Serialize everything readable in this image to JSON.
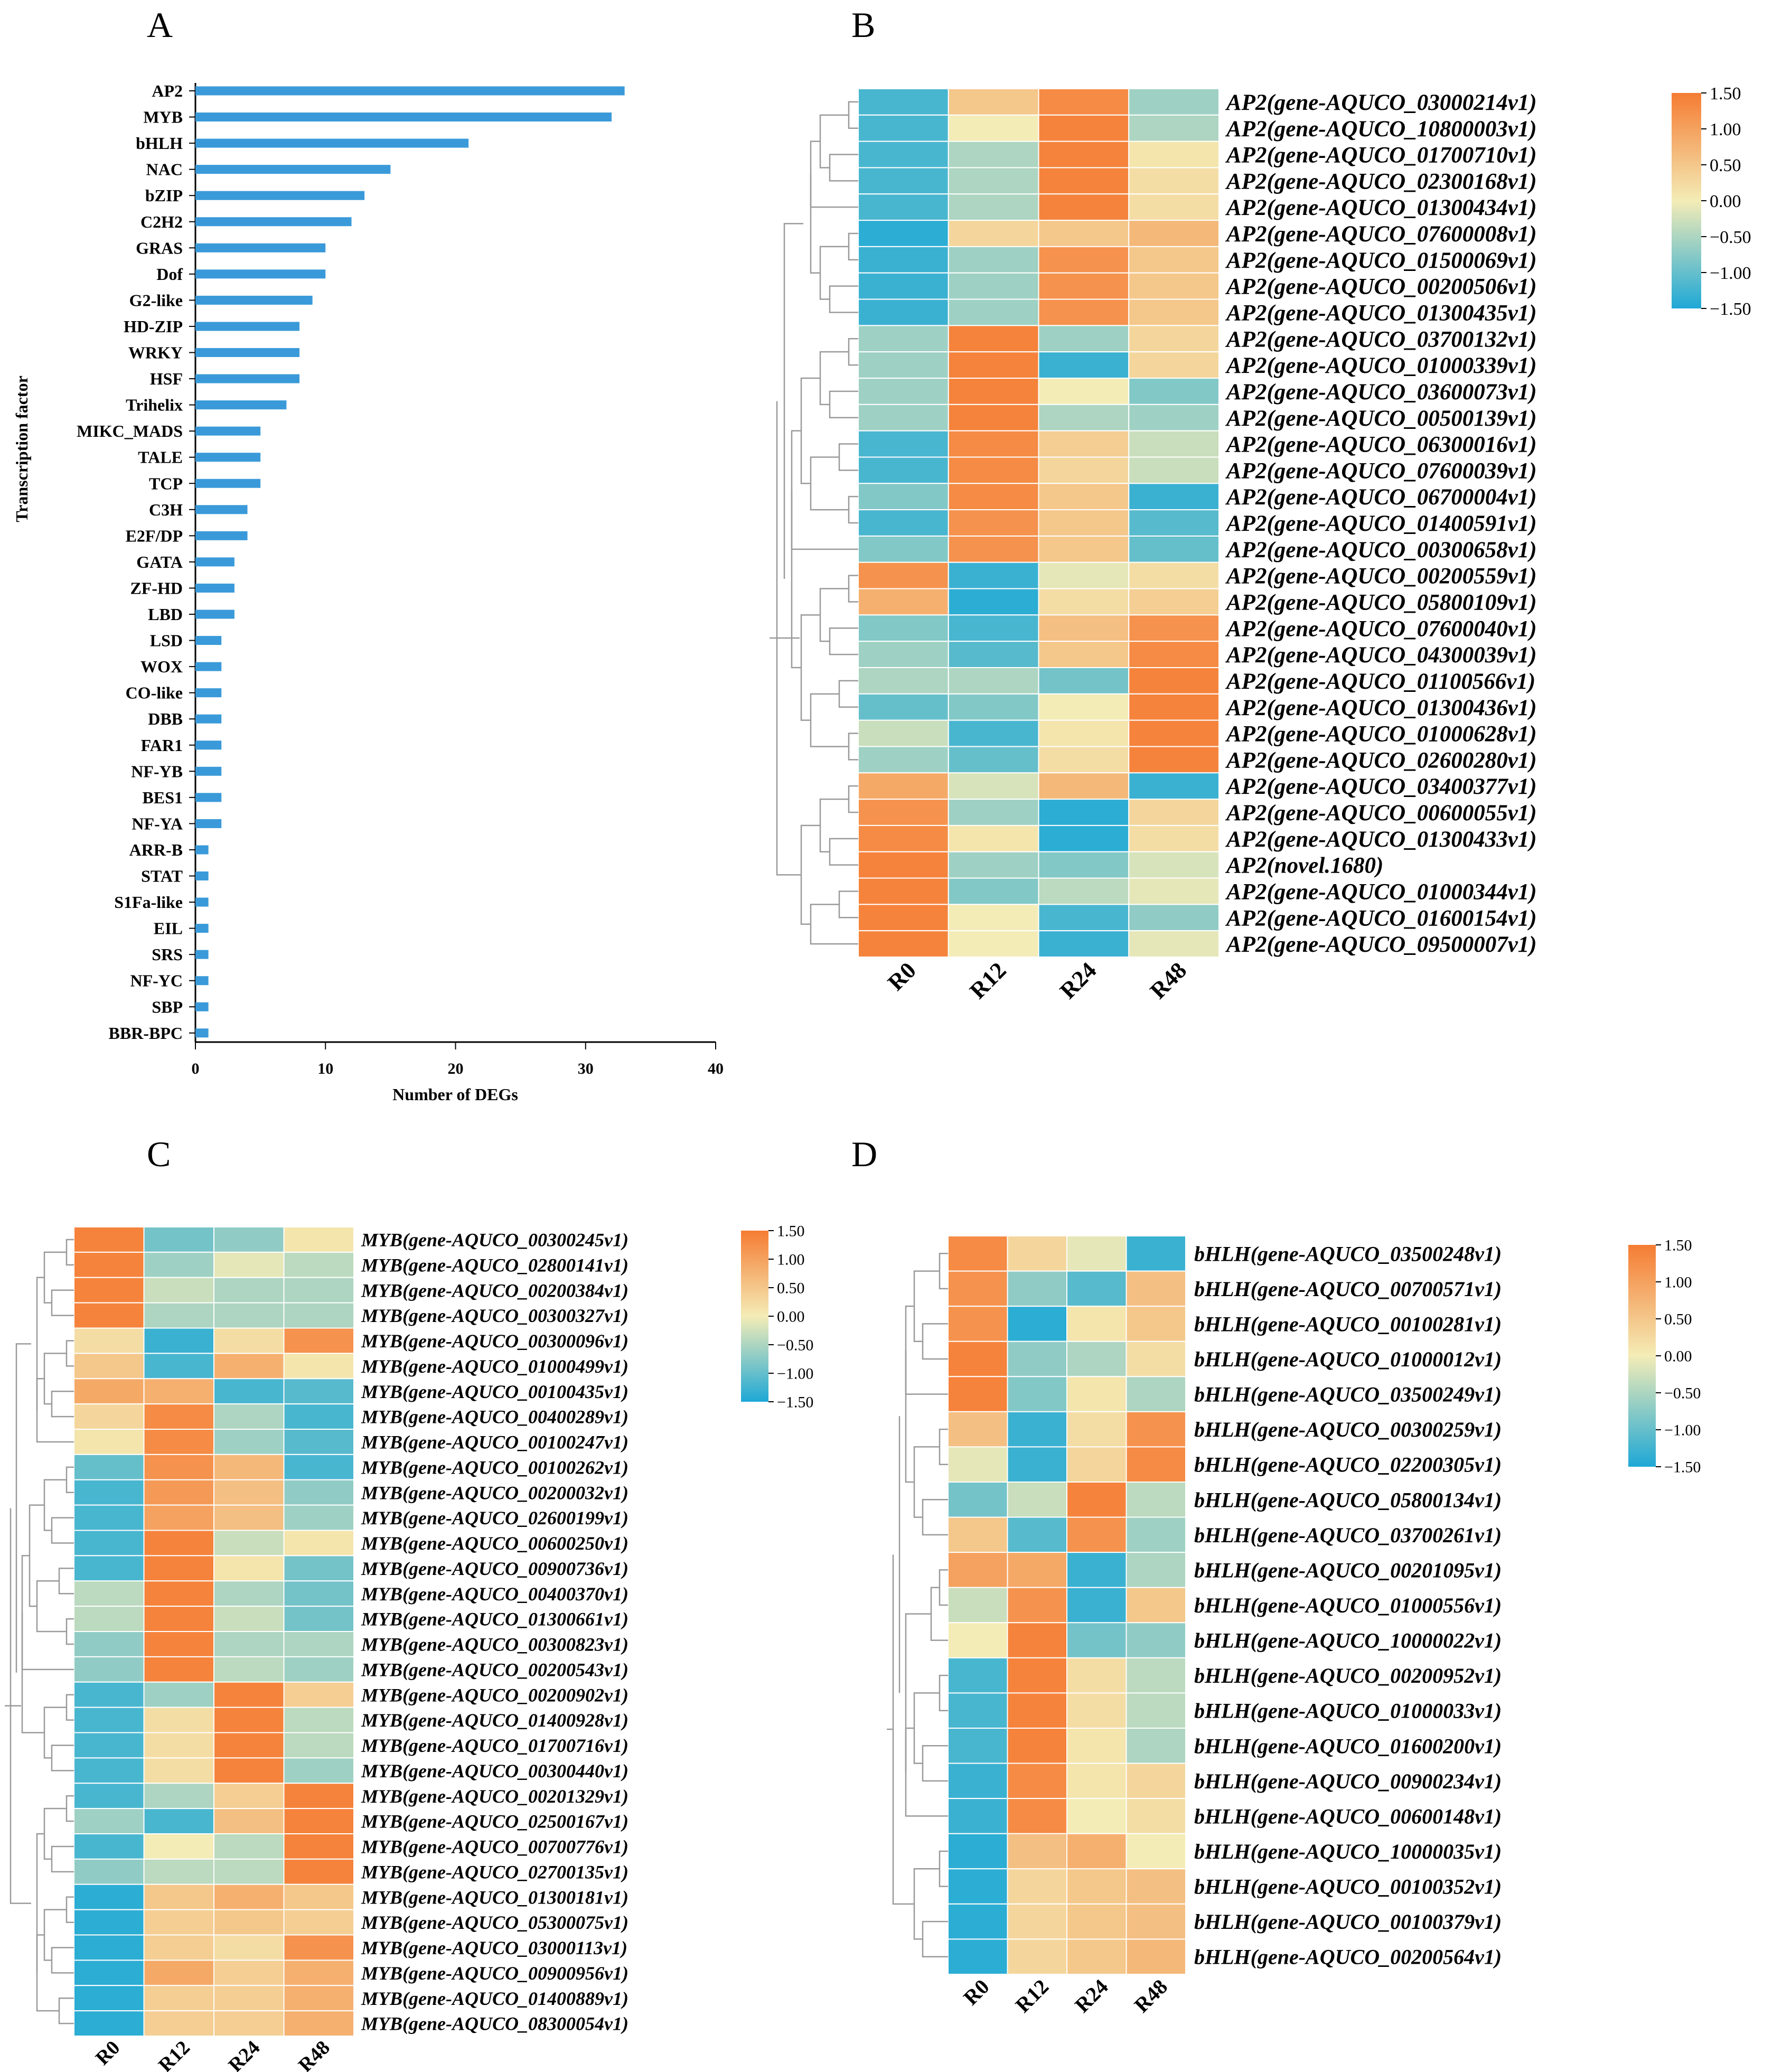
{
  "panels": {
    "a": "A",
    "b": "B",
    "c": "C",
    "d": "D"
  },
  "colorbar_ticks": [
    "1.50",
    "1.00",
    "0.50",
    "0.00",
    "−0.50",
    "−1.00",
    "−1.50"
  ],
  "colorscale": {
    "low": "#1ea8d6",
    "mid": "#f4ecb6",
    "high": "#f57c33"
  },
  "chart_data": [
    {
      "id": "A",
      "type": "bar",
      "orientation": "horizontal",
      "xlabel": "Number of DEGs",
      "ylabel": "Transcription factor",
      "xlim": [
        0,
        40
      ],
      "xticks": [
        0,
        10,
        20,
        30,
        40
      ],
      "bar_color": "#3a9ad9",
      "categories": [
        "AP2",
        "MYB",
        "bHLH",
        "NAC",
        "bZIP",
        "C2H2",
        "GRAS",
        "Dof",
        "G2-like",
        "HD-ZIP",
        "WRKY",
        "HSF",
        "Trihelix",
        "MIKC_MADS",
        "TALE",
        "TCP",
        "C3H",
        "E2F/DP",
        "GATA",
        "ZF-HD",
        "LBD",
        "LSD",
        "WOX",
        "CO-like",
        "DBB",
        "FAR1",
        "NF-YB",
        "BES1",
        "NF-YA",
        "ARR-B",
        "STAT",
        "S1Fa-like",
        "EIL",
        "SRS",
        "NF-YC",
        "SBP",
        "BBR-BPC"
      ],
      "values": [
        33,
        32,
        21,
        15,
        13,
        12,
        10,
        10,
        9,
        8,
        8,
        8,
        7,
        5,
        5,
        5,
        4,
        4,
        3,
        3,
        3,
        2,
        2,
        2,
        2,
        2,
        2,
        2,
        2,
        1,
        1,
        1,
        1,
        1,
        1,
        1,
        1
      ]
    },
    {
      "id": "B",
      "type": "heatmap",
      "columns": [
        "R0",
        "R12",
        "R24",
        "R48"
      ],
      "vmin": -1.5,
      "vmax": 1.5,
      "rows": [
        "AP2(gene-AQUCO_03000214v1)",
        "AP2(gene-AQUCO_10800003v1)",
        "AP2(gene-AQUCO_01700710v1)",
        "AP2(gene-AQUCO_02300168v1)",
        "AP2(gene-AQUCO_01300434v1)",
        "AP2(gene-AQUCO_07600008v1)",
        "AP2(gene-AQUCO_01500069v1)",
        "AP2(gene-AQUCO_00200506v1)",
        "AP2(gene-AQUCO_01300435v1)",
        "AP2(gene-AQUCO_03700132v1)",
        "AP2(gene-AQUCO_01000339v1)",
        "AP2(gene-AQUCO_03600073v1)",
        "AP2(gene-AQUCO_00500139v1)",
        "AP2(gene-AQUCO_06300016v1)",
        "AP2(gene-AQUCO_07600039v1)",
        "AP2(gene-AQUCO_06700004v1)",
        "AP2(gene-AQUCO_01400591v1)",
        "AP2(gene-AQUCO_00300658v1)",
        "AP2(gene-AQUCO_00200559v1)",
        "AP2(gene-AQUCO_05800109v1)",
        "AP2(gene-AQUCO_07600040v1)",
        "AP2(gene-AQUCO_04300039v1)",
        "AP2(gene-AQUCO_01100566v1)",
        "AP2(gene-AQUCO_01300436v1)",
        "AP2(gene-AQUCO_01000628v1)",
        "AP2(gene-AQUCO_02600280v1)",
        "AP2(gene-AQUCO_03400377v1)",
        "AP2(gene-AQUCO_00600055v1)",
        "AP2(gene-AQUCO_01300433v1)",
        "AP2(novel.1680)",
        "AP2(gene-AQUCO_01000344v1)",
        "AP2(gene-AQUCO_01600154v1)",
        "AP2(gene-AQUCO_09500007v1)"
      ],
      "values": [
        [
          -1.2,
          0.5,
          1.3,
          -0.6
        ],
        [
          -1.2,
          0.0,
          1.4,
          -0.5
        ],
        [
          -1.2,
          -0.5,
          1.4,
          0.1
        ],
        [
          -1.2,
          -0.5,
          1.4,
          0.2
        ],
        [
          -1.2,
          -0.5,
          1.4,
          0.2
        ],
        [
          -1.4,
          0.3,
          0.5,
          0.7
        ],
        [
          -1.3,
          -0.6,
          1.2,
          0.5
        ],
        [
          -1.3,
          -0.6,
          1.2,
          0.5
        ],
        [
          -1.3,
          -0.6,
          1.2,
          0.5
        ],
        [
          -0.6,
          1.4,
          -0.6,
          0.3
        ],
        [
          -0.6,
          1.4,
          -1.3,
          0.3
        ],
        [
          -0.6,
          1.4,
          0.0,
          -0.8
        ],
        [
          -0.6,
          1.4,
          -0.5,
          -0.6
        ],
        [
          -1.2,
          1.3,
          0.4,
          -0.3
        ],
        [
          -1.2,
          1.3,
          0.3,
          -0.3
        ],
        [
          -0.8,
          1.3,
          0.5,
          -1.3
        ],
        [
          -1.2,
          1.2,
          0.5,
          -1.1
        ],
        [
          -0.8,
          1.2,
          0.5,
          -1.0
        ],
        [
          1.2,
          -1.3,
          -0.1,
          0.2
        ],
        [
          0.8,
          -1.4,
          0.2,
          0.4
        ],
        [
          -0.8,
          -1.2,
          0.6,
          1.2
        ],
        [
          -0.6,
          -1.1,
          0.5,
          1.3
        ],
        [
          -0.5,
          -0.5,
          -0.9,
          1.4
        ],
        [
          -1.0,
          -0.8,
          0.0,
          1.4
        ],
        [
          -0.3,
          -1.2,
          0.1,
          1.4
        ],
        [
          -0.6,
          -1.0,
          0.2,
          1.4
        ],
        [
          0.9,
          -0.2,
          0.7,
          -1.3
        ],
        [
          1.2,
          -0.6,
          -1.4,
          0.3
        ],
        [
          1.3,
          0.1,
          -1.4,
          0.2
        ],
        [
          1.4,
          -0.6,
          -0.8,
          -0.2
        ],
        [
          1.4,
          -0.8,
          -0.4,
          -0.1
        ],
        [
          1.4,
          0.0,
          -1.2,
          -0.7
        ],
        [
          1.4,
          0.0,
          -1.3,
          -0.1
        ]
      ]
    },
    {
      "id": "C",
      "type": "heatmap",
      "columns": [
        "R0",
        "R12",
        "R24",
        "R48"
      ],
      "vmin": -1.5,
      "vmax": 1.5,
      "rows": [
        "MYB(gene-AQUCO_00300245v1)",
        "MYB(gene-AQUCO_02800141v1)",
        "MYB(gene-AQUCO_00200384v1)",
        "MYB(gene-AQUCO_00300327v1)",
        "MYB(gene-AQUCO_00300096v1)",
        "MYB(gene-AQUCO_01000499v1)",
        "MYB(gene-AQUCO_00100435v1)",
        "MYB(gene-AQUCO_00400289v1)",
        "MYB(gene-AQUCO_00100247v1)",
        "MYB(gene-AQUCO_00100262v1)",
        "MYB(gene-AQUCO_00200032v1)",
        "MYB(gene-AQUCO_02600199v1)",
        "MYB(gene-AQUCO_00600250v1)",
        "MYB(gene-AQUCO_00900736v1)",
        "MYB(gene-AQUCO_00400370v1)",
        "MYB(gene-AQUCO_01300661v1)",
        "MYB(gene-AQUCO_00300823v1)",
        "MYB(gene-AQUCO_00200543v1)",
        "MYB(gene-AQUCO_00200902v1)",
        "MYB(gene-AQUCO_01400928v1)",
        "MYB(gene-AQUCO_01700716v1)",
        "MYB(gene-AQUCO_00300440v1)",
        "MYB(gene-AQUCO_00201329v1)",
        "MYB(gene-AQUCO_02500167v1)",
        "MYB(gene-AQUCO_00700776v1)",
        "MYB(gene-AQUCO_02700135v1)",
        "MYB(gene-AQUCO_01300181v1)",
        "MYB(gene-AQUCO_05300075v1)",
        "MYB(gene-AQUCO_03000113v1)",
        "MYB(gene-AQUCO_00900956v1)",
        "MYB(gene-AQUCO_01400889v1)",
        "MYB(gene-AQUCO_08300054v1)"
      ],
      "values": [
        [
          1.4,
          -0.9,
          -0.7,
          0.1
        ],
        [
          1.4,
          -0.6,
          -0.1,
          -0.4
        ],
        [
          1.4,
          -0.3,
          -0.5,
          -0.5
        ],
        [
          1.4,
          -0.5,
          -0.5,
          -0.5
        ],
        [
          0.2,
          -1.3,
          0.2,
          1.2
        ],
        [
          0.5,
          -1.2,
          0.8,
          0.1
        ],
        [
          0.9,
          0.8,
          -1.2,
          -1.1
        ],
        [
          0.3,
          1.3,
          -0.5,
          -1.2
        ],
        [
          0.1,
          1.3,
          -0.6,
          -1.1
        ],
        [
          -1.0,
          1.2,
          0.7,
          -1.2
        ],
        [
          -1.2,
          1.1,
          0.6,
          -0.7
        ],
        [
          -1.2,
          1.0,
          0.6,
          -0.6
        ],
        [
          -1.2,
          1.4,
          -0.3,
          0.1
        ],
        [
          -1.2,
          1.4,
          0.1,
          -0.9
        ],
        [
          -0.4,
          1.4,
          -0.5,
          -0.9
        ],
        [
          -0.4,
          1.4,
          -0.3,
          -0.9
        ],
        [
          -0.7,
          1.4,
          -0.5,
          -0.5
        ],
        [
          -0.7,
          1.4,
          -0.4,
          -0.6
        ],
        [
          -1.2,
          -0.6,
          1.4,
          0.4
        ],
        [
          -1.2,
          0.2,
          1.4,
          -0.4
        ],
        [
          -1.2,
          0.2,
          1.4,
          -0.4
        ],
        [
          -1.2,
          0.2,
          1.4,
          -0.6
        ],
        [
          -1.2,
          -0.5,
          0.4,
          1.4
        ],
        [
          -0.6,
          -1.2,
          0.6,
          1.4
        ],
        [
          -1.2,
          0.0,
          -0.4,
          1.4
        ],
        [
          -0.7,
          -0.4,
          -0.4,
          1.4
        ],
        [
          -1.4,
          0.5,
          0.8,
          0.5
        ],
        [
          -1.4,
          0.4,
          0.5,
          0.4
        ],
        [
          -1.4,
          0.4,
          0.2,
          1.2
        ],
        [
          -1.4,
          0.9,
          0.4,
          0.8
        ],
        [
          -1.4,
          0.4,
          0.4,
          0.8
        ],
        [
          -1.4,
          0.4,
          0.4,
          0.8
        ]
      ]
    },
    {
      "id": "D",
      "type": "heatmap",
      "columns": [
        "R0",
        "R12",
        "R24",
        "R48"
      ],
      "vmin": -1.5,
      "vmax": 1.5,
      "rows": [
        "bHLH(gene-AQUCO_03500248v1)",
        "bHLH(gene-AQUCO_00700571v1)",
        "bHLH(gene-AQUCO_00100281v1)",
        "bHLH(gene-AQUCO_01000012v1)",
        "bHLH(gene-AQUCO_03500249v1)",
        "bHLH(gene-AQUCO_00300259v1)",
        "bHLH(gene-AQUCO_02200305v1)",
        "bHLH(gene-AQUCO_05800134v1)",
        "bHLH(gene-AQUCO_03700261v1)",
        "bHLH(gene-AQUCO_00201095v1)",
        "bHLH(gene-AQUCO_01000556v1)",
        "bHLH(gene-AQUCO_10000022v1)",
        "bHLH(gene-AQUCO_00200952v1)",
        "bHLH(gene-AQUCO_01000033v1)",
        "bHLH(gene-AQUCO_01600200v1)",
        "bHLH(gene-AQUCO_00900234v1)",
        "bHLH(gene-AQUCO_00600148v1)",
        "bHLH(gene-AQUCO_10000035v1)",
        "bHLH(gene-AQUCO_00100352v1)",
        "bHLH(gene-AQUCO_00100379v1)",
        "bHLH(gene-AQUCO_00200564v1)"
      ],
      "values": [
        [
          1.3,
          0.3,
          -0.1,
          -1.3
        ],
        [
          1.2,
          -0.7,
          -1.1,
          0.6
        ],
        [
          1.2,
          -1.4,
          0.1,
          0.5
        ],
        [
          1.4,
          -0.7,
          -0.5,
          0.2
        ],
        [
          1.4,
          -0.8,
          0.1,
          -0.5
        ],
        [
          0.6,
          -1.3,
          0.2,
          1.2
        ],
        [
          -0.1,
          -1.3,
          0.3,
          1.3
        ],
        [
          -0.9,
          -0.3,
          1.4,
          -0.4
        ],
        [
          0.5,
          -1.1,
          1.2,
          -0.6
        ],
        [
          1.0,
          0.9,
          -1.3,
          -0.5
        ],
        [
          -0.3,
          1.2,
          -1.3,
          0.5
        ],
        [
          0.0,
          1.4,
          -0.9,
          -0.7
        ],
        [
          -1.2,
          1.4,
          0.2,
          -0.4
        ],
        [
          -1.2,
          1.4,
          0.2,
          -0.4
        ],
        [
          -1.2,
          1.4,
          0.1,
          -0.5
        ],
        [
          -1.3,
          1.3,
          0.1,
          0.3
        ],
        [
          -1.3,
          1.3,
          0.0,
          0.2
        ],
        [
          -1.4,
          0.6,
          0.8,
          0.0
        ],
        [
          -1.4,
          0.3,
          0.5,
          0.6
        ],
        [
          -1.4,
          0.3,
          0.5,
          0.6
        ],
        [
          -1.4,
          0.3,
          0.5,
          0.7
        ]
      ]
    }
  ]
}
